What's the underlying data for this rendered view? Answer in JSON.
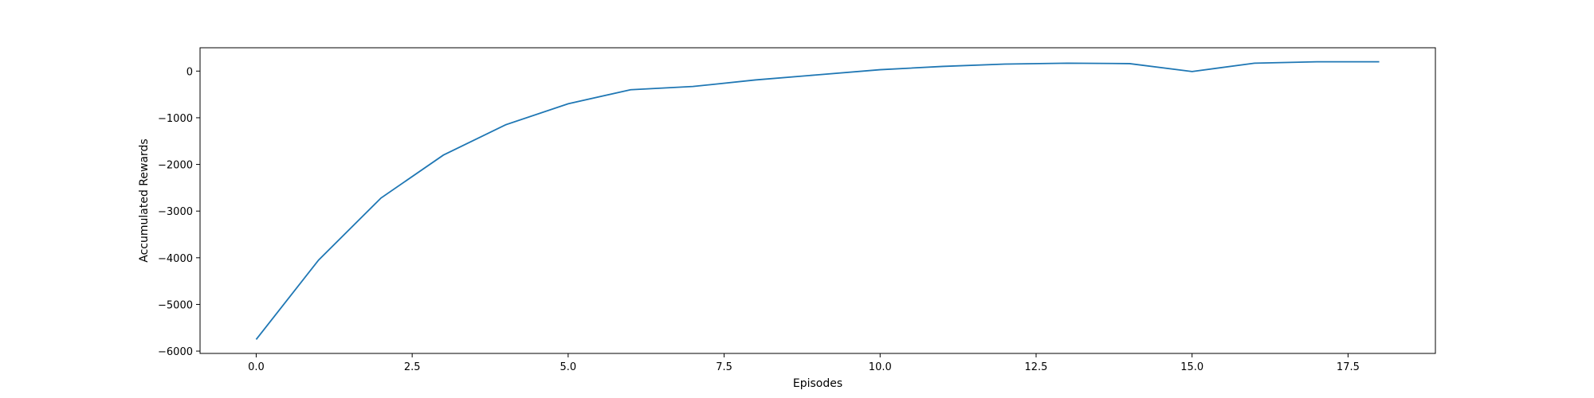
{
  "chart_data": {
    "type": "line",
    "title": "",
    "xlabel": "Episodes",
    "ylabel": "Accumulated Rewards",
    "xlim": [
      -0.9,
      18.9
    ],
    "ylim": [
      -6050,
      500
    ],
    "grid": false,
    "x_ticks": [
      0.0,
      2.5,
      5.0,
      7.5,
      10.0,
      12.5,
      15.0,
      17.5
    ],
    "x_tick_labels": [
      "0.0",
      "2.5",
      "5.0",
      "7.5",
      "10.0",
      "12.5",
      "15.0",
      "17.5"
    ],
    "y_ticks": [
      -6000,
      -5000,
      -4000,
      -3000,
      -2000,
      -1000,
      0
    ],
    "y_tick_labels": [
      "−6000",
      "−5000",
      "−4000",
      "−3000",
      "−2000",
      "−1000",
      "0"
    ],
    "series": [
      {
        "color": "#1f77b4",
        "x": [
          0,
          1,
          2,
          3,
          4,
          5,
          6,
          7,
          8,
          9,
          10,
          11,
          12,
          13,
          14,
          15,
          16,
          17,
          18
        ],
        "y": [
          -5750,
          -4050,
          -2720,
          -1800,
          -1150,
          -700,
          -400,
          -330,
          -190,
          -80,
          30,
          100,
          150,
          170,
          160,
          -10,
          170,
          200,
          200
        ]
      }
    ]
  }
}
